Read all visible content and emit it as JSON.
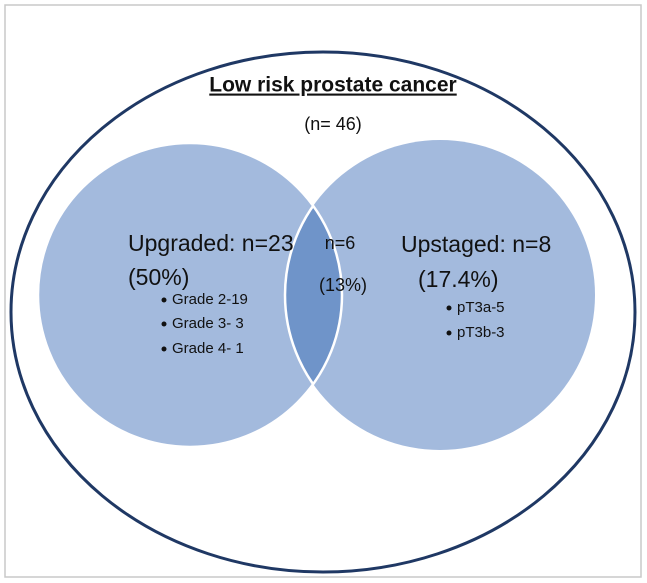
{
  "header": {
    "title": "Low risk prostate cancer",
    "total": "(n= 46)"
  },
  "sets": [
    {
      "label": "Upgraded: n=23",
      "percent": "(50%)",
      "items": [
        "Grade 2-19",
        "Grade 3- 3",
        "Grade 4- 1"
      ]
    },
    {
      "label": "Upstaged: n=8",
      "percent": "(17.4%)",
      "items": [
        "pT3a-5",
        "pT3b-3"
      ]
    }
  ],
  "intersection": {
    "label": "n=6",
    "percent": "(13%)"
  }
}
